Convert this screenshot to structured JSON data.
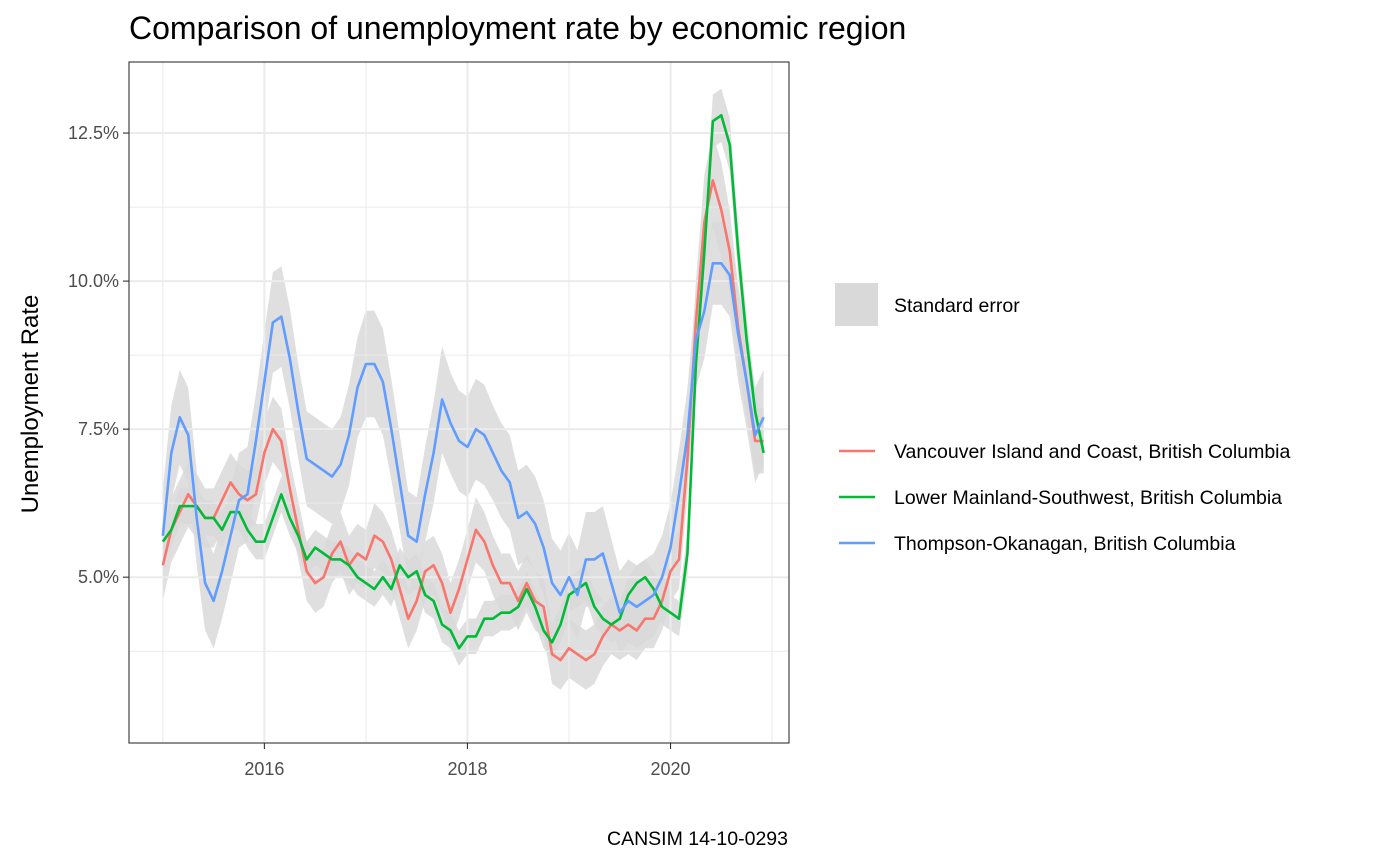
{
  "chart_data": {
    "type": "line",
    "title": "Comparison of unemployment rate by economic region",
    "ylabel": "Unemployment Rate",
    "xlabel": "",
    "caption": "CANSIM 14-10-0293",
    "x_ticks": [
      "2016",
      "2018",
      "2020"
    ],
    "y_ticks": [
      "5.0%",
      "7.5%",
      "10.0%",
      "12.5%"
    ],
    "x_start": "2015-01",
    "x_step": "1 month",
    "x_range": [
      "2014-09",
      "2021-03"
    ],
    "ylim": [
      2.2,
      13.7
    ],
    "grid": true,
    "legend_position": "right",
    "ribbon_legend": "Standard error",
    "ribbon_color": "#d9d9d9",
    "series": [
      {
        "name": "Vancouver Island and Coast, British Columbia",
        "color": "#F8766D",
        "values": [
          5.2,
          5.8,
          6.1,
          6.4,
          6.2,
          6.0,
          6.0,
          6.3,
          6.6,
          6.4,
          6.3,
          6.4,
          7.1,
          7.5,
          7.3,
          6.5,
          5.8,
          5.1,
          4.9,
          5.0,
          5.4,
          5.6,
          5.2,
          5.4,
          5.3,
          5.7,
          5.6,
          5.3,
          4.8,
          4.3,
          4.6,
          5.1,
          5.2,
          4.9,
          4.4,
          4.8,
          5.3,
          5.8,
          5.6,
          5.2,
          4.9,
          4.9,
          4.6,
          4.9,
          4.6,
          4.5,
          3.7,
          3.6,
          3.8,
          3.7,
          3.6,
          3.7,
          4.0,
          4.2,
          4.1,
          4.2,
          4.1,
          4.3,
          4.3,
          4.6,
          5.1,
          5.3,
          7.0,
          9.3,
          11.0,
          11.7,
          11.2,
          10.5,
          9.2,
          8.3,
          7.3,
          7.3
        ],
        "se": [
          0.6,
          0.55,
          0.55,
          0.55,
          0.55,
          0.5,
          0.5,
          0.5,
          0.5,
          0.5,
          0.5,
          0.5,
          0.55,
          0.55,
          0.55,
          0.5,
          0.5,
          0.5,
          0.5,
          0.5,
          0.5,
          0.5,
          0.5,
          0.5,
          0.5,
          0.55,
          0.5,
          0.5,
          0.5,
          0.5,
          0.5,
          0.5,
          0.5,
          0.5,
          0.5,
          0.5,
          0.5,
          0.55,
          0.5,
          0.5,
          0.5,
          0.5,
          0.5,
          0.5,
          0.5,
          0.5,
          0.5,
          0.5,
          0.5,
          0.5,
          0.5,
          0.5,
          0.5,
          0.5,
          0.5,
          0.5,
          0.5,
          0.5,
          0.5,
          0.5,
          0.5,
          0.5,
          0.6,
          0.7,
          0.8,
          0.8,
          0.8,
          0.7,
          0.7,
          0.6,
          0.55,
          0.55
        ]
      },
      {
        "name": "Lower Mainland-Southwest, British Columbia",
        "color": "#00BA38",
        "values": [
          5.6,
          5.8,
          6.2,
          6.2,
          6.2,
          6.0,
          6.0,
          5.8,
          6.1,
          6.1,
          5.8,
          5.6,
          5.6,
          6.0,
          6.4,
          6.0,
          5.7,
          5.3,
          5.5,
          5.4,
          5.3,
          5.3,
          5.2,
          5.0,
          4.9,
          4.8,
          5.0,
          4.8,
          5.2,
          5.0,
          5.1,
          4.7,
          4.6,
          4.2,
          4.1,
          3.8,
          4.0,
          4.0,
          4.3,
          4.3,
          4.4,
          4.4,
          4.5,
          4.8,
          4.5,
          4.1,
          3.9,
          4.2,
          4.7,
          4.8,
          4.9,
          4.5,
          4.3,
          4.2,
          4.3,
          4.7,
          4.9,
          5.0,
          4.8,
          4.5,
          4.4,
          4.3,
          5.4,
          8.6,
          10.5,
          12.7,
          12.8,
          12.3,
          10.5,
          9.0,
          7.8,
          7.1
        ],
        "se": [
          0.3,
          0.3,
          0.3,
          0.3,
          0.3,
          0.3,
          0.3,
          0.3,
          0.3,
          0.3,
          0.3,
          0.3,
          0.3,
          0.3,
          0.3,
          0.3,
          0.3,
          0.3,
          0.3,
          0.3,
          0.3,
          0.3,
          0.3,
          0.3,
          0.3,
          0.3,
          0.3,
          0.3,
          0.3,
          0.3,
          0.3,
          0.3,
          0.3,
          0.3,
          0.3,
          0.3,
          0.3,
          0.3,
          0.3,
          0.3,
          0.3,
          0.3,
          0.3,
          0.3,
          0.3,
          0.3,
          0.3,
          0.3,
          0.3,
          0.3,
          0.3,
          0.3,
          0.3,
          0.3,
          0.3,
          0.3,
          0.3,
          0.3,
          0.3,
          0.3,
          0.3,
          0.3,
          0.4,
          0.4,
          0.4,
          0.45,
          0.45,
          0.45,
          0.4,
          0.4,
          0.35,
          0.35
        ]
      },
      {
        "name": "Thompson-Okanagan, British Columbia",
        "color": "#619CFF",
        "values": [
          5.7,
          7.1,
          7.7,
          7.4,
          6.0,
          4.9,
          4.6,
          5.1,
          5.7,
          6.3,
          6.4,
          7.3,
          8.3,
          9.3,
          9.4,
          8.7,
          7.8,
          7.0,
          6.9,
          6.8,
          6.7,
          6.9,
          7.4,
          8.2,
          8.6,
          8.6,
          8.3,
          7.5,
          6.6,
          5.7,
          5.6,
          6.4,
          7.1,
          8.0,
          7.6,
          7.3,
          7.2,
          7.5,
          7.4,
          7.1,
          6.8,
          6.6,
          6.0,
          6.1,
          5.9,
          5.5,
          4.9,
          4.7,
          5.0,
          4.7,
          5.3,
          5.3,
          5.4,
          4.9,
          4.4,
          4.6,
          4.5,
          4.6,
          4.7,
          5.0,
          5.5,
          6.4,
          7.4,
          9.0,
          9.5,
          10.3,
          10.3,
          10.1,
          9.1,
          8.3,
          7.4,
          7.7
        ],
        "se": [
          0.8,
          0.8,
          0.8,
          0.8,
          0.8,
          0.8,
          0.8,
          0.8,
          0.8,
          0.8,
          0.8,
          0.8,
          0.85,
          0.85,
          0.85,
          0.85,
          0.8,
          0.8,
          0.8,
          0.8,
          0.8,
          0.8,
          0.85,
          0.85,
          0.9,
          0.9,
          0.9,
          0.85,
          0.8,
          0.75,
          0.75,
          0.8,
          0.85,
          0.9,
          0.85,
          0.85,
          0.85,
          0.85,
          0.85,
          0.8,
          0.8,
          0.8,
          0.8,
          0.8,
          0.8,
          0.8,
          0.75,
          0.75,
          0.75,
          0.75,
          0.8,
          0.8,
          0.8,
          0.75,
          0.7,
          0.7,
          0.7,
          0.7,
          0.7,
          0.7,
          0.75,
          0.75,
          0.8,
          0.8,
          0.8,
          0.7,
          0.7,
          0.7,
          0.8,
          0.8,
          0.8,
          0.8
        ]
      }
    ]
  }
}
